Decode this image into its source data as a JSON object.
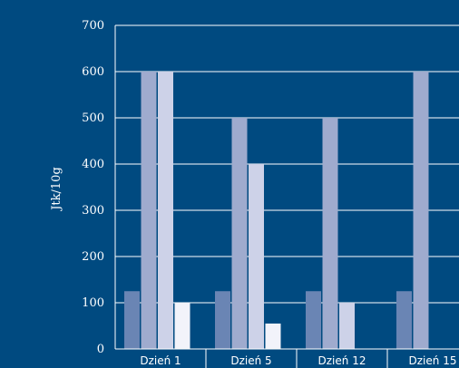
{
  "chart_data": {
    "type": "bar",
    "title": "",
    "xlabel": "",
    "ylabel": "Jtk/10g",
    "ylim": [
      0,
      700
    ],
    "yticks": [
      0,
      100,
      200,
      300,
      400,
      500,
      600,
      700
    ],
    "grid": true,
    "legend": "none",
    "categories": [
      "Dzień 1",
      "Dzień 5",
      "Dzień 12",
      "Dzień 15"
    ],
    "series": [
      {
        "color": "#6a85b4",
        "values": [
          125,
          125,
          125,
          125
        ]
      },
      {
        "color": "#9fabce",
        "values": [
          600,
          500,
          500,
          600
        ]
      },
      {
        "color": "#cdd2e8",
        "values": [
          600,
          400,
          100,
          null
        ]
      },
      {
        "color": "#f2f3fa",
        "values": [
          100,
          55,
          null,
          null
        ]
      }
    ]
  }
}
